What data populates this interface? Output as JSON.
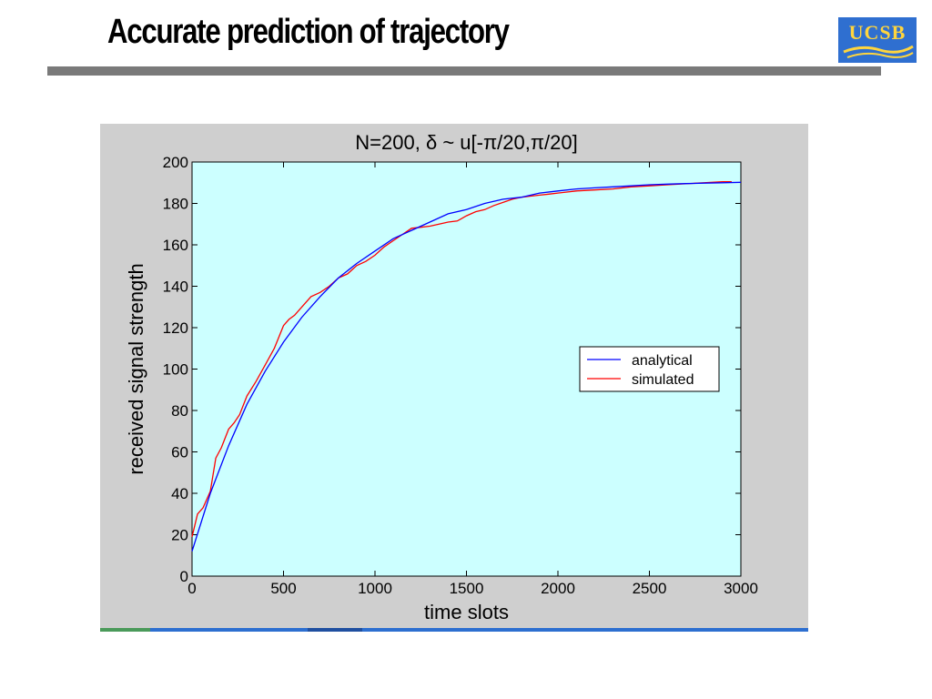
{
  "slide": {
    "title": "Accurate prediction of trajectory"
  },
  "logo": {
    "text": "UCSB"
  },
  "colors": {
    "plot_background": "#ccffff",
    "figure_background": "#cfcfcf",
    "analytical": "#0000ff",
    "simulated": "#ff0000",
    "rule": "#7a7a7a",
    "logo_bg": "#2f6fd0",
    "logo_fg": "#ffd53d"
  },
  "chart_data": {
    "type": "line",
    "title": "N=200, δ ~ u[-π/20,π/20]",
    "xlabel": "time slots",
    "ylabel": "received signal strength",
    "xlim": [
      0,
      3000
    ],
    "ylim": [
      0,
      200
    ],
    "xticks": [
      0,
      500,
      1000,
      1500,
      2000,
      2500,
      3000
    ],
    "yticks": [
      0,
      20,
      40,
      60,
      80,
      100,
      120,
      140,
      160,
      180,
      200
    ],
    "grid": false,
    "legend_position": "center-right",
    "series": [
      {
        "name": "analytical",
        "color": "#0000ff",
        "x": [
          0,
          100,
          200,
          300,
          400,
          500,
          600,
          700,
          800,
          900,
          1000,
          1100,
          1200,
          1300,
          1400,
          1500,
          1600,
          1700,
          1800,
          1900,
          2000,
          2100,
          2200,
          2300,
          2400,
          2500,
          2600,
          2700,
          2800,
          2900,
          3000
        ],
        "y": [
          12,
          40,
          63,
          83,
          99,
          113,
          125,
          135,
          144,
          151,
          157,
          163,
          167,
          171,
          175,
          177,
          180,
          182,
          183,
          185,
          186,
          187,
          187.5,
          188,
          188.5,
          189,
          189.3,
          189.6,
          189.8,
          190,
          190.2
        ]
      },
      {
        "name": "simulated",
        "color": "#ff0000",
        "x": [
          0,
          30,
          60,
          100,
          130,
          160,
          200,
          230,
          260,
          300,
          350,
          400,
          450,
          500,
          530,
          560,
          600,
          650,
          700,
          750,
          800,
          850,
          900,
          950,
          1000,
          1050,
          1100,
          1150,
          1200,
          1250,
          1300,
          1350,
          1400,
          1450,
          1500,
          1550,
          1600,
          1650,
          1700,
          1750,
          1800,
          1850,
          1900,
          1950,
          2000,
          2050,
          2100,
          2200,
          2300,
          2400,
          2500,
          2600,
          2700,
          2800,
          2900,
          2950
        ],
        "y": [
          19,
          30,
          33,
          41,
          57,
          62,
          71,
          74,
          78,
          87,
          94,
          102,
          110,
          121,
          124,
          126,
          130,
          135,
          137,
          140,
          144,
          146,
          150,
          152,
          155,
          159,
          162,
          165,
          168,
          168.5,
          169,
          170,
          171,
          171.5,
          174,
          176,
          177,
          179,
          180.5,
          182,
          183,
          183.5,
          184,
          184.5,
          185,
          185.5,
          186,
          186.5,
          187,
          188,
          188.5,
          189,
          189.5,
          190,
          190.5,
          190.5
        ]
      }
    ]
  }
}
